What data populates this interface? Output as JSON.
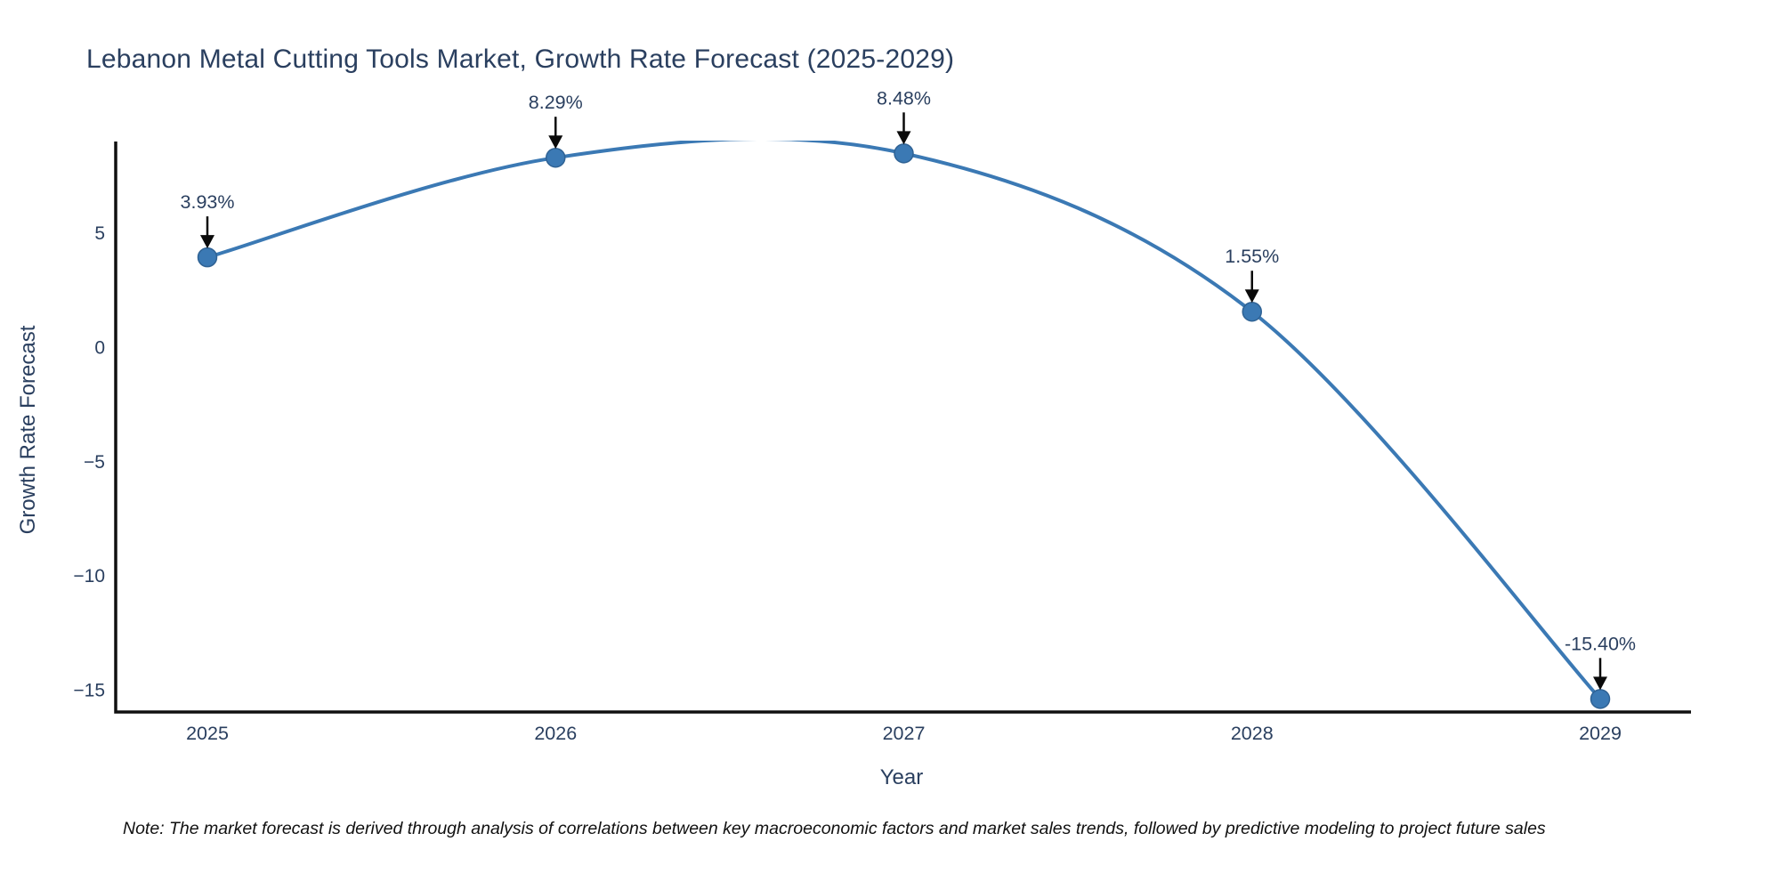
{
  "title": "Lebanon Metal Cutting Tools Market, Growth Rate Forecast (2025-2029)",
  "note": "Note: The market forecast is derived through analysis of correlations between key macroeconomic factors and market sales trends, followed by predictive modeling to project future sales",
  "chart_data": {
    "type": "line",
    "title": "Lebanon Metal Cutting Tools Market, Growth Rate Forecast (2025-2029)",
    "xlabel": "Year",
    "ylabel": "Growth Rate Forecast",
    "x": [
      2025,
      2026,
      2027,
      2028,
      2029
    ],
    "values": [
      3.93,
      8.29,
      8.48,
      1.55,
      -15.4
    ],
    "point_labels": [
      "3.93%",
      "8.29%",
      "8.48%",
      "1.55%",
      "-15.40%"
    ],
    "xtick_labels": [
      "2025",
      "2026",
      "2027",
      "2028",
      "2029"
    ],
    "yticks": [
      5,
      0,
      -5,
      -10,
      -15
    ],
    "ytick_labels": [
      "5",
      "0",
      "−5",
      "−10",
      "−15"
    ],
    "ylim": [
      -15.97,
      9.04
    ],
    "line_shape": "spline",
    "grid": false,
    "legend": "none",
    "annotation_arrows": "black, pointing down at each marker",
    "colors": {
      "line": "#3b79b4",
      "marker_fill": "#3b79b4",
      "marker_edge": "#2f6294",
      "axis_line": "#101010",
      "tick_text": "#2a3f5f",
      "annotation_text": "#2a3f5f",
      "arrow": "#0a0a0a",
      "title_text": "#2a3f5f",
      "note_text": "#111111",
      "background": "#ffffff"
    }
  }
}
